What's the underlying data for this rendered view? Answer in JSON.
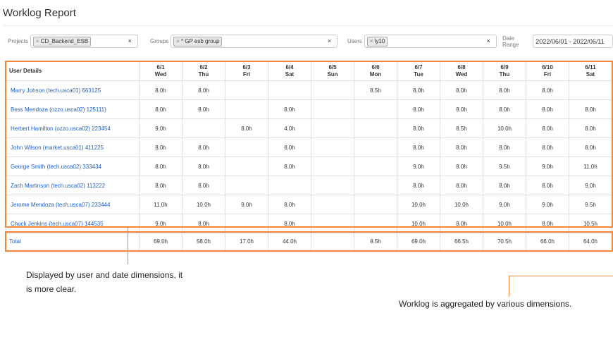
{
  "title": "Worklog Report",
  "filters": {
    "projects": {
      "label": "Projects",
      "chips": [
        "CD_Backend_ESB"
      ],
      "clear": "×"
    },
    "groups": {
      "label": "Groups",
      "chips": [
        "* GP esb group"
      ],
      "clear": "×"
    },
    "users": {
      "label": "Users",
      "chips": [
        "ly10"
      ],
      "clear": "×"
    },
    "date_range": {
      "label": "Date Range",
      "value": "2022/06/01 - 2022/06/11"
    }
  },
  "table": {
    "user_header": "User Details",
    "days": [
      {
        "date": "6/1",
        "dow": "Wed"
      },
      {
        "date": "6/2",
        "dow": "Thu"
      },
      {
        "date": "6/3",
        "dow": "Fri"
      },
      {
        "date": "6/4",
        "dow": "Sat"
      },
      {
        "date": "6/5",
        "dow": "Sun"
      },
      {
        "date": "6/6",
        "dow": "Mon"
      },
      {
        "date": "6/7",
        "dow": "Tue"
      },
      {
        "date": "6/8",
        "dow": "Wed"
      },
      {
        "date": "6/9",
        "dow": "Thu"
      },
      {
        "date": "6/10",
        "dow": "Fri"
      },
      {
        "date": "6/11",
        "dow": "Sat"
      }
    ],
    "rows": [
      {
        "user": "Marry Johson (tech.usca01) 663125",
        "hours": [
          "8.0h",
          "8.0h",
          "",
          "",
          "",
          "8.5h",
          "8.0h",
          "8.0h",
          "8.0h",
          "8.0h",
          ""
        ]
      },
      {
        "user": "Bess Mendoza (ozzo.usca02) 125111)",
        "hours": [
          "8.0h",
          "8.0h",
          "",
          "8.0h",
          "",
          "",
          "8.0h",
          "8.0h",
          "8.0h",
          "8.0h",
          "8.0h"
        ]
      },
      {
        "user": "Herbert Hamilton (ozzo.usca02) 223454",
        "hours": [
          "9.0h",
          "",
          "8.0h",
          "4.0h",
          "",
          "",
          "8.0h",
          "8.5h",
          "10.0h",
          "8.0h",
          "8.0h"
        ]
      },
      {
        "user": "John Wilson (market.usca01) 411225",
        "hours": [
          "8.0h",
          "8.0h",
          "",
          "8.0h",
          "",
          "",
          "8.0h",
          "8.0h",
          "8.0h",
          "8.0h",
          "8.0h"
        ]
      },
      {
        "user": "George Smith (tech.usca02) 333434",
        "hours": [
          "8.0h",
          "8.0h",
          "",
          "8.0h",
          "",
          "",
          "9.0h",
          "8.0h",
          "9.5h",
          "9.0h",
          "11.0h"
        ]
      },
      {
        "user": "Zach Martinson (tech.usca02) 113222",
        "hours": [
          "8.0h",
          "8.0h",
          "",
          "",
          "",
          "",
          "8.0h",
          "8.0h",
          "8.0h",
          "8.0h",
          "9.0h"
        ]
      },
      {
        "user": "Jerome Mendoza (tech.usca07) 233444",
        "hours": [
          "11.0h",
          "10.0h",
          "9.0h",
          "8.0h",
          "",
          "",
          "10.0h",
          "10.0h",
          "9.0h",
          "9.0h",
          "9.5h"
        ]
      },
      {
        "user": "Chuck Jenkins (tech.usca07) 144535",
        "hours": [
          "9.0h",
          "8.0h",
          "",
          "8.0h",
          "",
          "",
          "10.0h",
          "8.0h",
          "10.0h",
          "8.0h",
          "10.5h"
        ]
      }
    ],
    "total": {
      "label": "Total",
      "hours": [
        "69.0h",
        "58.0h",
        "17.0h",
        "44.0h",
        "",
        "8.5h",
        "69.0h",
        "66.5h",
        "70.5h",
        "66.0h",
        "64.0h"
      ]
    }
  },
  "annotations": {
    "left": [
      "Displayed by user and date dimensions, it",
      "is more clear."
    ],
    "right": "Worklog is aggregated by various dimensions."
  },
  "colors": {
    "highlight": "#f4873a",
    "link": "#1f5fbf"
  }
}
